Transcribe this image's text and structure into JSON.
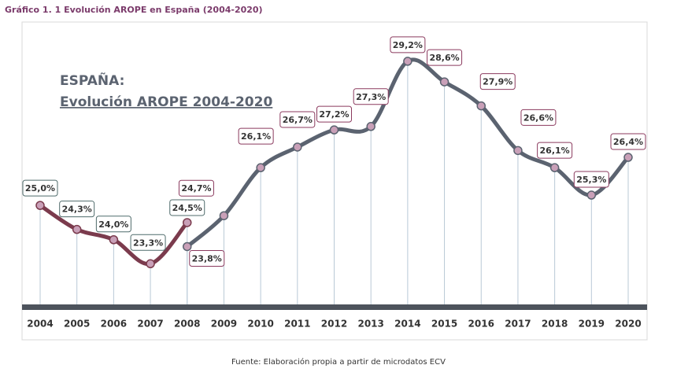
{
  "chart_data": {
    "type": "line",
    "title": "Gráfico 1. 1  Evolución AROPE en España (2004-2020)",
    "annotation": [
      "ESPAÑA:",
      "Evolución AROPE 2004-2020"
    ],
    "source": "Fuente: Elaboración propia a partir de microdatos ECV",
    "categories": [
      "2004",
      "2005",
      "2006",
      "2007",
      "2008",
      "2009",
      "2010",
      "2011",
      "2012",
      "2013",
      "2014",
      "2015",
      "2016",
      "2017",
      "2018",
      "2019",
      "2020"
    ],
    "series": [
      {
        "color": "#7b3b4d",
        "label_border": "#4f6b6b",
        "values": [
          25.0,
          24.3,
          24.0,
          23.3,
          24.5,
          null,
          null,
          null,
          null,
          null,
          null,
          null,
          null,
          null,
          null,
          null,
          null
        ],
        "value_labels": [
          "25,0%",
          "24,3%",
          "24,0%",
          "23,3%",
          "24,5%",
          null,
          null,
          null,
          null,
          null,
          null,
          null,
          null,
          null,
          null,
          null,
          null
        ]
      },
      {
        "color": "#5b6370",
        "label_border": "#8b3a5e",
        "values": [
          null,
          null,
          null,
          null,
          23.8,
          24.7,
          26.1,
          26.7,
          27.2,
          27.3,
          29.2,
          28.6,
          27.9,
          26.6,
          26.1,
          25.3,
          26.4
        ],
        "value_labels": [
          null,
          null,
          null,
          null,
          "23,8%",
          "24,7%",
          "26,1%",
          "26,7%",
          "27,2%",
          "27,3%",
          "29,2%",
          "28,6%",
          "27,9%",
          "26,6%",
          "26,1%",
          "25,3%",
          "26,4%"
        ]
      }
    ],
    "ylim": [
      22,
      30
    ],
    "marker_color": "#c9a0b8"
  }
}
